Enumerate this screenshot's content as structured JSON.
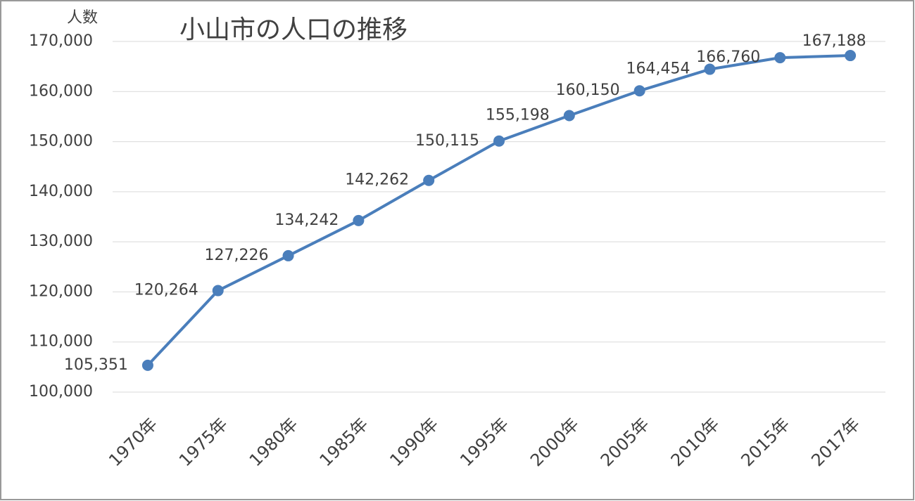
{
  "chart_data": {
    "type": "line",
    "title": "小山市の人口の推移",
    "y_label": "人数",
    "categories": [
      "1970年",
      "1975年",
      "1980年",
      "1985年",
      "1990年",
      "1995年",
      "2000年",
      "2005年",
      "2010年",
      "2015年",
      "2017年"
    ],
    "series": [
      {
        "name": "人数",
        "color": "#4a7ebb",
        "values": [
          105351,
          120264,
          127226,
          134242,
          142262,
          150115,
          155198,
          160150,
          164454,
          166760,
          167188
        ],
        "value_labels": [
          "105,351",
          "120,264",
          "127,226",
          "134,242",
          "142,262",
          "150,115",
          "155,198",
          "160,150",
          "164,454",
          "166,760",
          "167,188"
        ]
      }
    ],
    "ylim": [
      100000,
      170000
    ],
    "yticks": [
      {
        "value": 100000,
        "label": "100,000"
      },
      {
        "value": 110000,
        "label": "110,000"
      },
      {
        "value": 120000,
        "label": "120,000"
      },
      {
        "value": 130000,
        "label": "130,000"
      },
      {
        "value": 140000,
        "label": "140,000"
      },
      {
        "value": 150000,
        "label": "150,000"
      },
      {
        "value": 160000,
        "label": "160,000"
      },
      {
        "value": 170000,
        "label": "170,000"
      }
    ],
    "grid": true
  }
}
